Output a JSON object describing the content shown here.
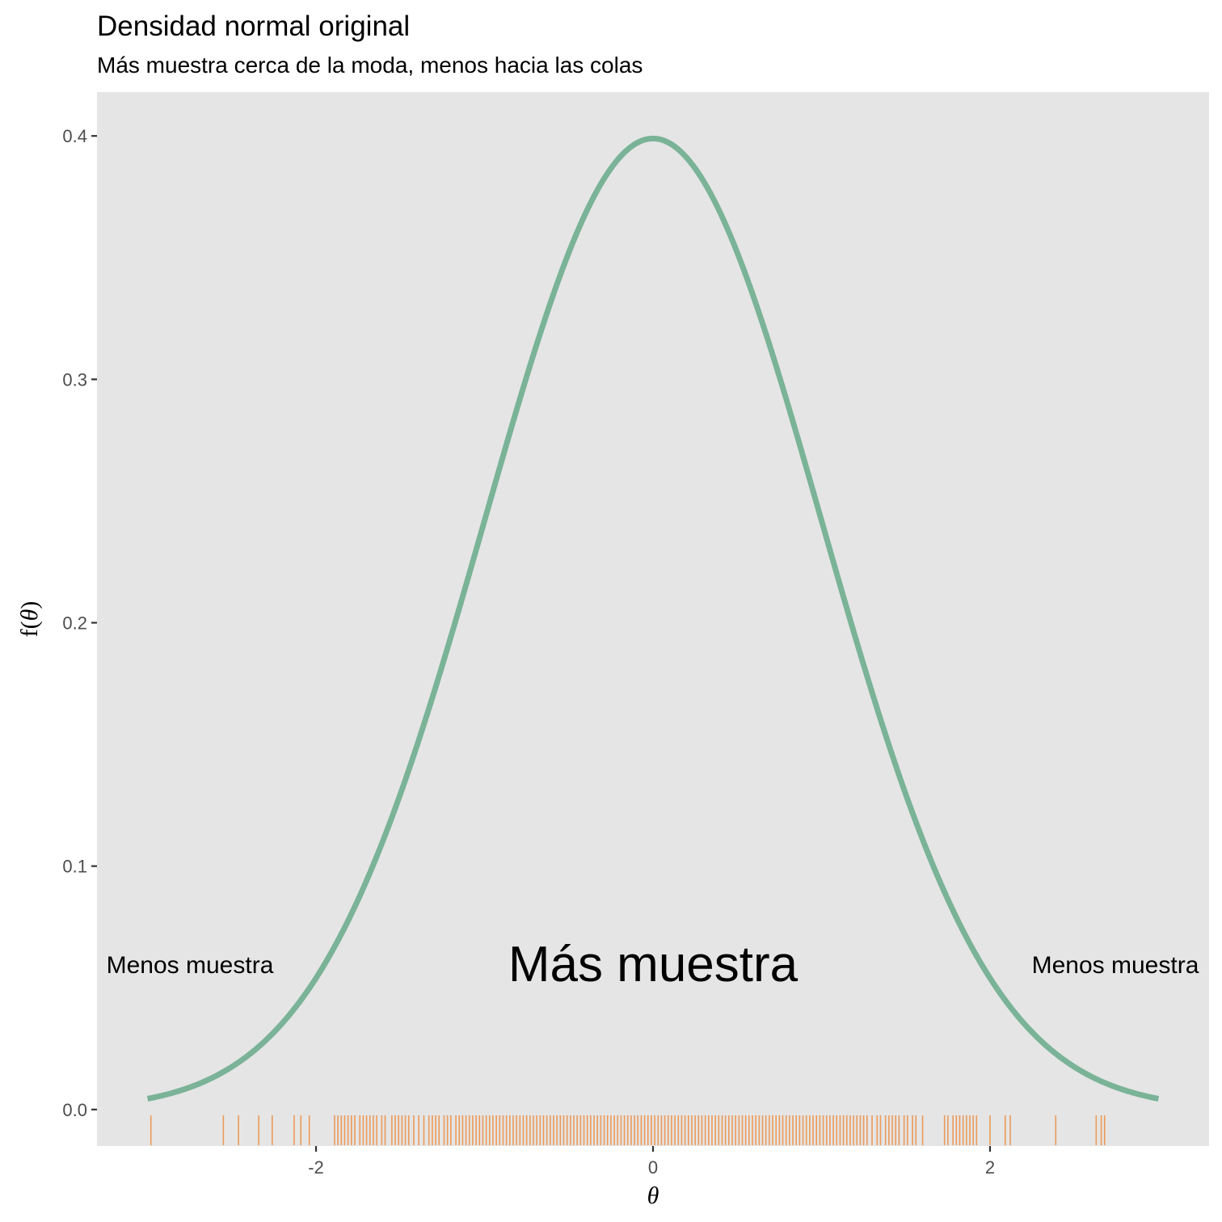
{
  "chart_data": {
    "type": "line",
    "title": "Densidad normal original",
    "subtitle": "Más muestra cerca de la moda, menos hacia las colas",
    "xlabel": "θ",
    "ylabel_prefix": "f(",
    "ylabel_symbol": "θ",
    "ylabel_suffix": ")",
    "xlim": [
      -3.3,
      3.3
    ],
    "ylim": [
      -0.015,
      0.418
    ],
    "x_ticks": [
      {
        "value": -2,
        "label": "-2"
      },
      {
        "value": 0,
        "label": "0"
      },
      {
        "value": 2,
        "label": "2"
      }
    ],
    "y_ticks": [
      {
        "value": 0.0,
        "label": "0.0"
      },
      {
        "value": 0.1,
        "label": "0.1"
      },
      {
        "value": 0.2,
        "label": "0.2"
      },
      {
        "value": 0.3,
        "label": "0.3"
      },
      {
        "value": 0.4,
        "label": "0.4"
      }
    ],
    "series": [
      {
        "name": "normal density",
        "color": "#7ab397",
        "function": "standard normal pdf",
        "x_range": [
          -3,
          3
        ]
      }
    ],
    "rug": {
      "color": "#ec9a59",
      "values": [
        -2.98,
        -2.55,
        -2.46,
        -2.34,
        -2.26,
        -2.13,
        -2.09,
        -2.04,
        -1.89,
        -1.87,
        -1.85,
        -1.83,
        -1.81,
        -1.79,
        -1.77,
        -1.74,
        -1.72,
        -1.7,
        -1.68,
        -1.66,
        -1.64,
        -1.61,
        -1.59,
        -1.55,
        -1.53,
        -1.51,
        -1.49,
        -1.47,
        -1.45,
        -1.42,
        -1.39,
        -1.36,
        -1.33,
        -1.31,
        -1.29,
        -1.27,
        -1.24,
        -1.22,
        -1.2,
        -1.17,
        -1.15,
        -1.13,
        -1.11,
        -1.09,
        -1.07,
        -1.05,
        -1.03,
        -1.01,
        -0.99,
        -0.97,
        -0.95,
        -0.93,
        -0.91,
        -0.89,
        -0.87,
        -0.85,
        -0.83,
        -0.81,
        -0.79,
        -0.77,
        -0.75,
        -0.73,
        -0.71,
        -0.69,
        -0.67,
        -0.65,
        -0.63,
        -0.61,
        -0.59,
        -0.57,
        -0.55,
        -0.53,
        -0.51,
        -0.49,
        -0.47,
        -0.45,
        -0.43,
        -0.41,
        -0.39,
        -0.37,
        -0.35,
        -0.33,
        -0.31,
        -0.29,
        -0.27,
        -0.25,
        -0.23,
        -0.21,
        -0.19,
        -0.17,
        -0.15,
        -0.13,
        -0.11,
        -0.09,
        -0.07,
        -0.05,
        -0.03,
        -0.01,
        0.01,
        0.03,
        0.05,
        0.07,
        0.09,
        0.11,
        0.13,
        0.15,
        0.17,
        0.19,
        0.21,
        0.23,
        0.25,
        0.27,
        0.29,
        0.31,
        0.33,
        0.35,
        0.37,
        0.39,
        0.41,
        0.43,
        0.45,
        0.47,
        0.49,
        0.51,
        0.53,
        0.55,
        0.57,
        0.59,
        0.61,
        0.63,
        0.65,
        0.67,
        0.69,
        0.71,
        0.73,
        0.75,
        0.77,
        0.79,
        0.81,
        0.83,
        0.85,
        0.87,
        0.89,
        0.91,
        0.93,
        0.95,
        0.97,
        0.99,
        1.01,
        1.03,
        1.05,
        1.07,
        1.09,
        1.11,
        1.13,
        1.15,
        1.17,
        1.19,
        1.21,
        1.23,
        1.25,
        1.27,
        1.3,
        1.33,
        1.35,
        1.38,
        1.4,
        1.42,
        1.44,
        1.46,
        1.49,
        1.51,
        1.54,
        1.56,
        1.6,
        1.73,
        1.75,
        1.78,
        1.8,
        1.82,
        1.84,
        1.86,
        1.88,
        1.9,
        1.92,
        2.0,
        2.09,
        2.12,
        2.39,
        2.63,
        2.66,
        2.68
      ]
    },
    "annotations": [
      {
        "text": "Menos muestra",
        "x": -2.75,
        "y": 0.06,
        "size": "medium"
      },
      {
        "text": "Más muestra",
        "x": 0,
        "y": 0.06,
        "size": "large"
      },
      {
        "text": "Menos muestra",
        "x": 2.75,
        "y": 0.06,
        "size": "medium"
      }
    ],
    "grid": false,
    "panel_color": "#e5e5e5"
  }
}
